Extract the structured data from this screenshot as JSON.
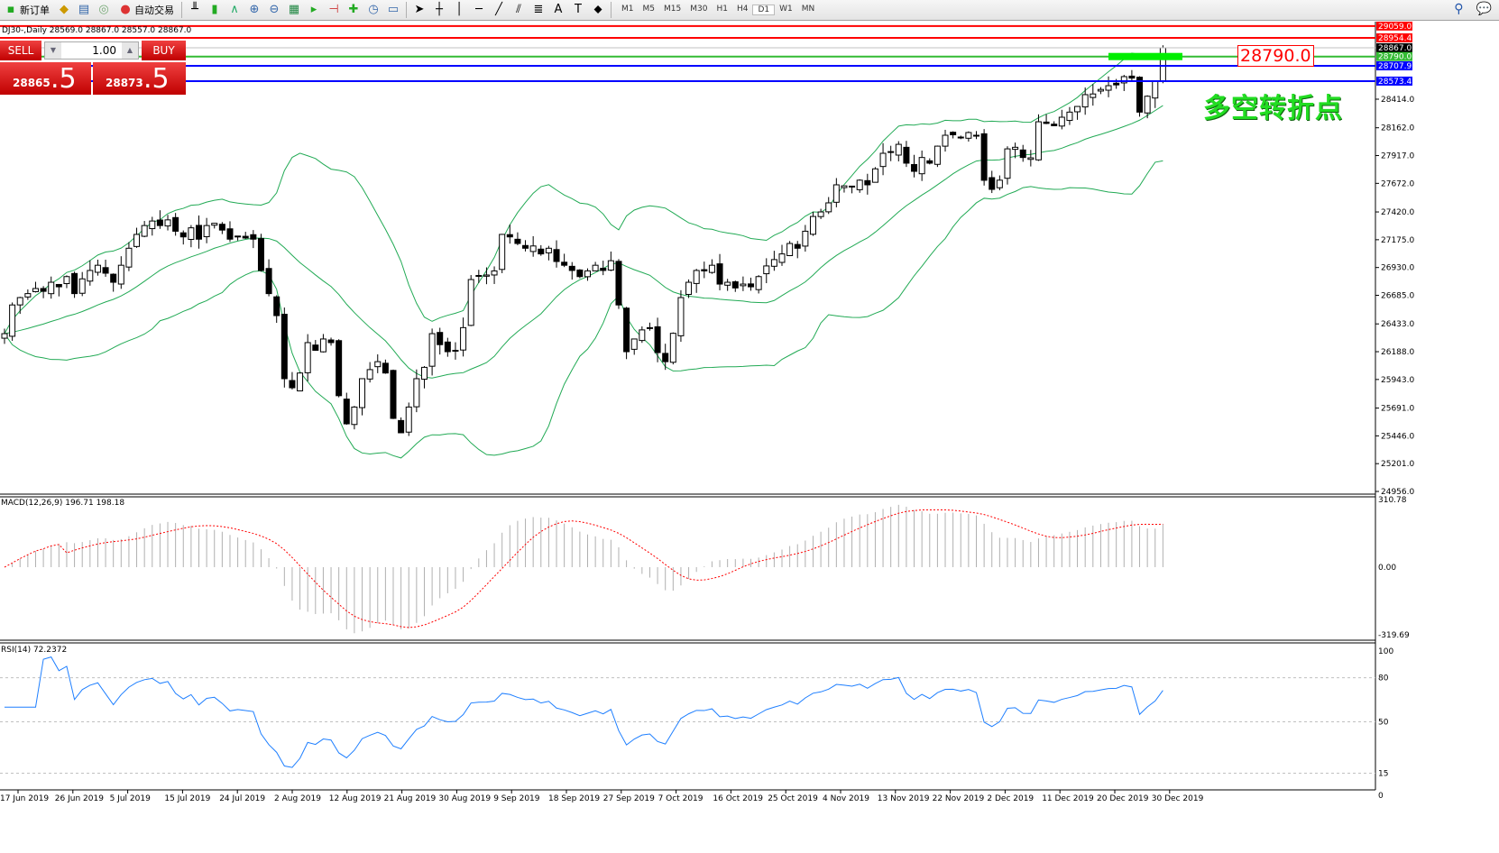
{
  "toolbar": {
    "new_order": "新订单",
    "auto_trading": "自动交易",
    "timeframes": [
      "M1",
      "M5",
      "M15",
      "M30",
      "H1",
      "H4",
      "D1",
      "W1",
      "MN"
    ],
    "active_timeframe": "D1"
  },
  "chart_info": "DJ30-,Daily  28569.0 28867.0 28557.0 28867.0",
  "trade_panel": {
    "sell": "SELL",
    "buy": "BUY",
    "lot": "1.00",
    "sell_price_main": "28865",
    "sell_price_big": ".5",
    "buy_price_main": "28873",
    "buy_price_big": ".5"
  },
  "annotation": {
    "price_tag": "28790.0",
    "text": "多空转折点",
    "text_color": "#22dd22"
  },
  "chart_data": {
    "type": "candlestick",
    "symbol": "DJ30-",
    "timeframe": "Daily",
    "closes": [
      26347,
      26600,
      26665,
      26700,
      26745,
      26720,
      26800,
      26760,
      26850,
      26700,
      26830,
      26904,
      26950,
      26880,
      26800,
      26950,
      27100,
      27222,
      27300,
      27340,
      27300,
      27350,
      27250,
      27200,
      27280,
      27180,
      27300,
      27320,
      27260,
      27180,
      27200,
      27190,
      27180,
      26904,
      26700,
      26506,
      25950,
      25870,
      26000,
      26268,
      26200,
      26300,
      26268,
      25800,
      25552,
      25700,
      25950,
      26030,
      26100,
      26000,
      25600,
      25473,
      25700,
      25950,
      26050,
      26347,
      26250,
      26188,
      26200,
      26400,
      26824,
      26860,
      26864,
      26900,
      27222,
      27200,
      27142,
      27100,
      27120,
      27050,
      27100,
      26983,
      26950,
      26904,
      26850,
      26900,
      26950,
      26904,
      26990,
      26600,
      26188,
      26300,
      26380,
      26400,
      26180,
      26100,
      26350,
      26665,
      26800,
      26904,
      26900,
      26950,
      26784,
      26800,
      26750,
      26784,
      26760,
      26850,
      26944,
      27000,
      27050,
      27142,
      27100,
      27250,
      27380,
      27420,
      27500,
      27659,
      27650,
      27640,
      27700,
      27659,
      27800,
      27937,
      27950,
      28016,
      27850,
      27778,
      27900,
      27850,
      28000,
      28096,
      28100,
      28080,
      28120,
      28090,
      27699,
      27619,
      27700,
      27976,
      27990,
      27900,
      27897,
      28215,
      28200,
      28180,
      28255,
      28300,
      28350,
      28454,
      28460,
      28500,
      28533,
      28540,
      28613,
      28600,
      28300,
      28440,
      28569,
      28867
    ],
    "y_ticks": [
      "28414.0",
      "28162.0",
      "27917.0",
      "27672.0",
      "27420.0",
      "27175.0",
      "26930.0",
      "26685.0",
      "26433.0",
      "26188.0",
      "25943.0",
      "25691.0",
      "25446.0",
      "25201.0",
      "24956.0"
    ],
    "ylim": [
      24956,
      29100
    ],
    "x_labels": [
      "17 Jun 2019",
      "26 Jun 2019",
      "5 Jul 2019",
      "15 Jul 2019",
      "24 Jul 2019",
      "2 Aug 2019",
      "12 Aug 2019",
      "21 Aug 2019",
      "30 Aug 2019",
      "9 Sep 2019",
      "18 Sep 2019",
      "27 Sep 2019",
      "7 Oct 2019",
      "16 Oct 2019",
      "25 Oct 2019",
      "4 Nov 2019",
      "13 Nov 2019",
      "22 Nov 2019",
      "2 Dec 2019",
      "11 Dec 2019",
      "20 Dec 2019",
      "30 Dec 2019"
    ],
    "hlines": [
      {
        "price": 29059.0,
        "label": "29059.0",
        "color": "#ff0000"
      },
      {
        "price": 28954.4,
        "label": "28954.4",
        "color": "#ff0000"
      },
      {
        "price": 28867.0,
        "label": "28867.0",
        "color": "#000000",
        "line": "#c0c0c0"
      },
      {
        "price": 28790.0,
        "label": "28790.0",
        "color": "#33bb33"
      },
      {
        "price": 28707.9,
        "label": "28707.9",
        "color": "#0000ff"
      },
      {
        "price": 28573.4,
        "label": "28573.4",
        "color": "#0000ff"
      }
    ],
    "indicators": {
      "bands_color": "#22aa55",
      "macd": {
        "label": "MACD(12,26,9) 196.71 198.18",
        "ticks": [
          "310.78",
          "0.00",
          "-319.69"
        ],
        "range": [
          -319.69,
          310.78
        ],
        "signal_color": "#ff0000"
      },
      "rsi": {
        "label": "RSI(14) 72.2372",
        "ticks": [
          "100",
          "80",
          "50",
          "15",
          "0"
        ],
        "levels": [
          80,
          50,
          15
        ],
        "color": "#1e7fff"
      }
    }
  }
}
